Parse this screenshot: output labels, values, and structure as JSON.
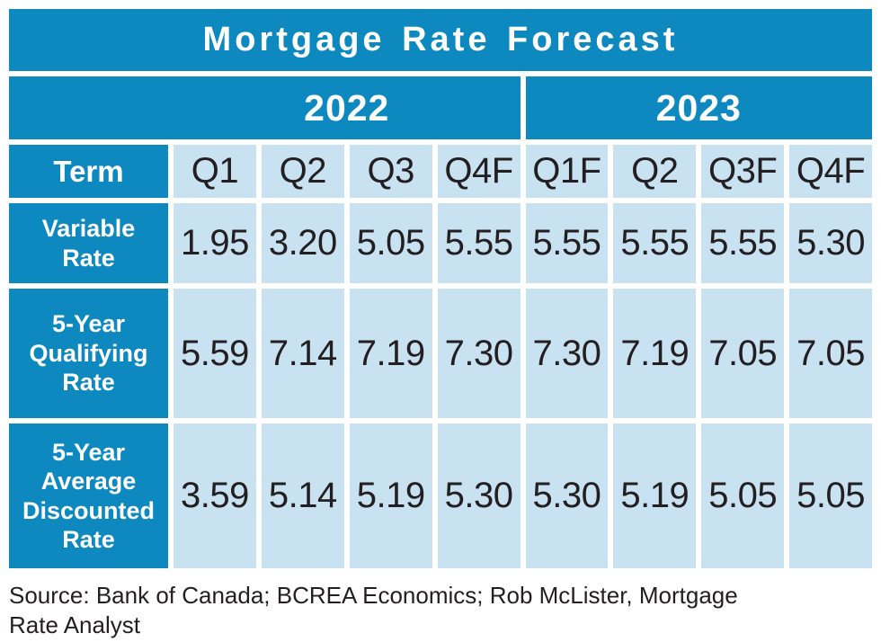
{
  "chart_data": {
    "type": "table",
    "title": "Mortgage Rate Forecast",
    "year_groups": [
      {
        "label": "2022",
        "span": 4
      },
      {
        "label": "2023",
        "span": 4
      }
    ],
    "term_header": "Term",
    "quarter_headers": [
      "Q1",
      "Q2",
      "Q3",
      "Q4F",
      "Q1F",
      "Q2",
      "Q3F",
      "Q4F"
    ],
    "series": [
      {
        "name": "Variable Rate",
        "values": [
          "1.95",
          "3.20",
          "5.05",
          "5.55",
          "5.55",
          "5.55",
          "5.55",
          "5.30"
        ]
      },
      {
        "name": "5-Year Qualifying Rate",
        "values": [
          "5.59",
          "7.14",
          "7.19",
          "7.30",
          "7.30",
          "7.19",
          "7.05",
          "7.05"
        ]
      },
      {
        "name": "5-Year Average Discounted Rate",
        "values": [
          "3.59",
          "5.14",
          "5.19",
          "5.30",
          "5.30",
          "5.19",
          "5.05",
          "5.05"
        ]
      }
    ],
    "source": "Source: Bank of Canada; BCREA Economics; Rob McLister, Mortgage Rate Analyst"
  },
  "source_note": {
    "line1": "Source: Bank of Canada; BCREA Economics; Rob McLister, Mortgage",
    "line2": "Rate Analyst"
  },
  "colors": {
    "dark_blue": "#0d89c0",
    "light_blue": "#c8e2f2",
    "text_dark": "#231f20"
  }
}
